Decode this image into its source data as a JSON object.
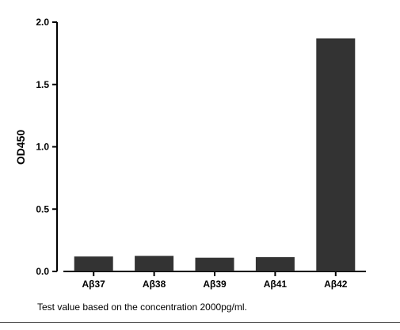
{
  "chart_data": {
    "type": "bar",
    "categories": [
      "Aβ37",
      "Aβ38",
      "Aβ39",
      "Aβ41",
      "Aβ42"
    ],
    "values": [
      0.12,
      0.125,
      0.11,
      0.115,
      1.87
    ],
    "xlabel": "",
    "ylabel": "OD450",
    "ylim": [
      0,
      2.0
    ],
    "yticks": [
      0.0,
      0.5,
      1.0,
      1.5,
      2.0
    ],
    "ytick_labels": [
      "0.0",
      "0.5",
      "1.0",
      "1.5",
      "2.0"
    ],
    "grid": false,
    "legend": "none",
    "bar_color": "#333333",
    "caption": "Test value based on the concentration 2000pg/ml."
  }
}
